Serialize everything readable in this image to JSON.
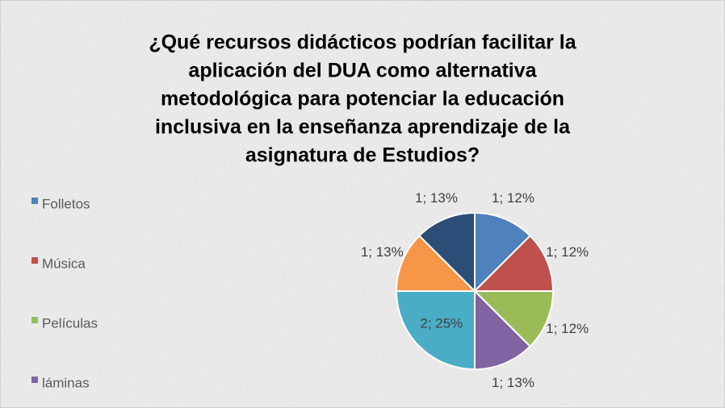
{
  "chart_data": {
    "type": "pie",
    "title": [
      "¿Qué recursos didácticos podrían facilitar la",
      "aplicación del DUA como alternativa",
      "metodológica para potenciar la educación",
      "inclusiva en la enseñanza aprendizaje de la",
      "asignatura de Estudios?"
    ],
    "categories": [
      "Folletos",
      "Música",
      "Películas",
      "láminas",
      null,
      null,
      null
    ],
    "values": [
      1,
      1,
      1,
      1,
      2,
      1,
      1
    ],
    "value_labels": [
      "1; 12%",
      "1; 12%",
      "1; 12%",
      "1; 13%",
      "2; 25%",
      "1; 13%",
      "1; 13%"
    ],
    "colors": [
      "#4f81bd",
      "#c0504d",
      "#9bbb59",
      "#8064a2",
      "#4bacc6",
      "#f79646",
      "#2c4d75"
    ],
    "legend": "left"
  }
}
